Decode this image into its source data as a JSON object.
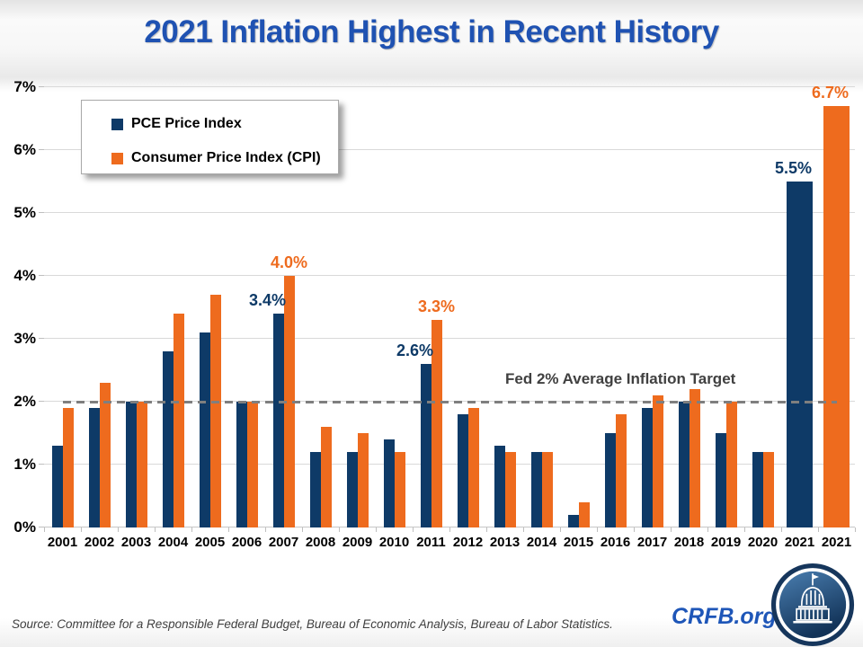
{
  "chart_data": {
    "type": "bar",
    "title": "2021 Inflation Highest in Recent History",
    "categories": [
      "2001",
      "2002",
      "2003",
      "2004",
      "2005",
      "2006",
      "2007",
      "2008",
      "2009",
      "2010",
      "2011",
      "2012",
      "2013",
      "2014",
      "2015",
      "2016",
      "2017",
      "2018",
      "2019",
      "2020",
      "2021",
      "2021"
    ],
    "series": [
      {
        "name": "PCE Price Index",
        "color": "#0E3A67",
        "values": [
          1.3,
          1.9,
          2.0,
          2.8,
          3.1,
          2.0,
          3.4,
          1.2,
          1.2,
          1.4,
          2.6,
          1.8,
          1.3,
          1.2,
          0.2,
          1.5,
          1.9,
          2.0,
          1.5,
          1.2,
          5.5,
          null
        ]
      },
      {
        "name": "Consumer Price Index (CPI)",
        "color": "#EE6B1E",
        "values": [
          1.9,
          2.3,
          2.0,
          3.4,
          3.7,
          2.0,
          4.0,
          1.6,
          1.5,
          1.2,
          3.3,
          1.9,
          1.2,
          1.2,
          0.4,
          1.8,
          2.1,
          2.2,
          2.0,
          1.2,
          null,
          6.7
        ]
      }
    ],
    "data_labels": [
      {
        "series": 0,
        "index": 6,
        "text": "3.4%"
      },
      {
        "series": 1,
        "index": 6,
        "text": "4.0%"
      },
      {
        "series": 0,
        "index": 10,
        "text": "2.6%"
      },
      {
        "series": 1,
        "index": 10,
        "text": "3.3%"
      },
      {
        "series": 0,
        "index": 20,
        "text": "5.5%"
      },
      {
        "series": 1,
        "index": 21,
        "text": "6.7%"
      }
    ],
    "ylim": [
      0,
      7
    ],
    "ytick_labels": [
      "0%",
      "1%",
      "2%",
      "3%",
      "4%",
      "5%",
      "6%",
      "7%"
    ],
    "grid": true,
    "legend_position": "top-left",
    "reference_line": {
      "value": 2,
      "label": "Fed 2% Average Inflation Target"
    }
  },
  "colors": {
    "title": "#1F52B2",
    "pce": "#0E3A67",
    "cpi": "#EE6B1E",
    "gridline": "#D9D9D9",
    "target_line": "#7F7F7F",
    "fed_text": "#404040",
    "crfb_blue": "#1E56B8",
    "logo_navy": "#16365C"
  },
  "footer": {
    "source": "Source: Committee for a Responsible Federal Budget, Bureau of Economic Analysis, Bureau of Labor Statistics.",
    "crfb_label": "CRFB.org"
  }
}
